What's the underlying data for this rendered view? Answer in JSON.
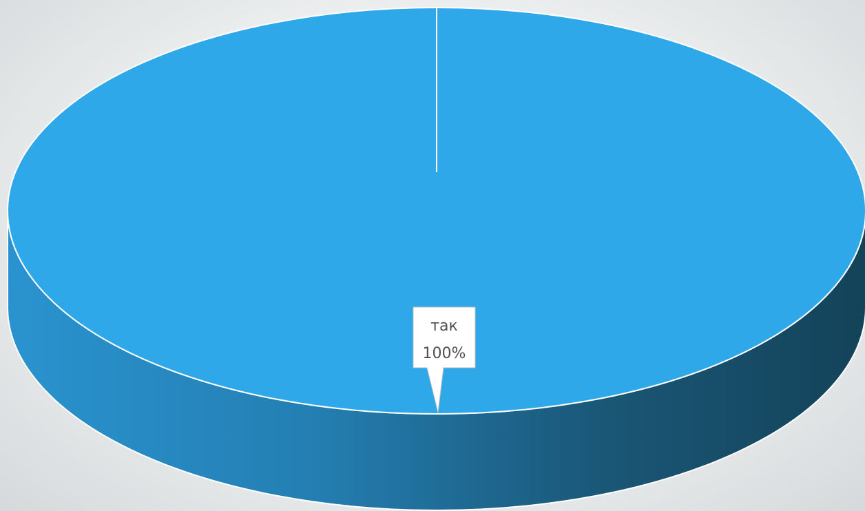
{
  "chart_data": {
    "type": "pie",
    "style": "3d",
    "slices": [
      {
        "category": "так",
        "value": 100,
        "percent_label": "100%",
        "color": "#2fa8ea"
      }
    ],
    "legend": "none"
  },
  "colors": {
    "top_face": "#2fa8ea",
    "side_light": "#2a93cf",
    "side_dark": "#134359",
    "slice_border": "#ffffff",
    "label_text": "#505050"
  }
}
